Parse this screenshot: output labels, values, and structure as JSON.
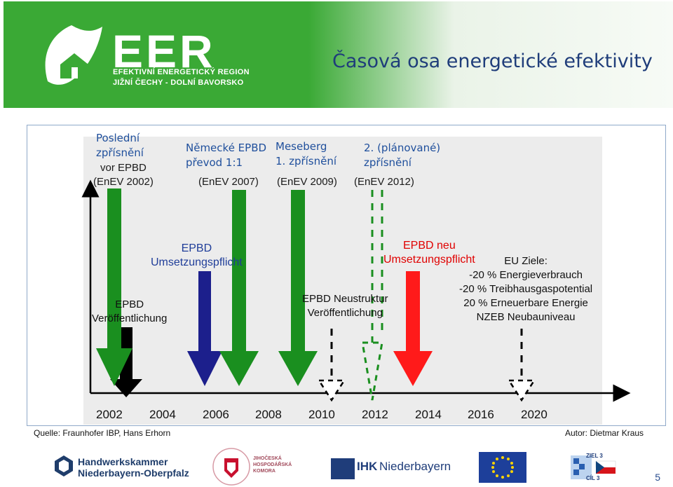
{
  "header": {
    "logo_text": "EER",
    "logo_sub1": "EFEKTIVNÍ ENERGETICKÝ REGION",
    "logo_sub2": "JIŽNÍ ČECHY - DOLNÍ BAVORSKO",
    "title": "Časová osa energetické efektivity"
  },
  "diagram": {
    "top_labels": {
      "l1_a": "Poslední",
      "l1_b": "zpřísnění",
      "l1_c": "vor EPBD",
      "l1_d": "(EnEV 2002)",
      "l2_a": "Německé EPBD",
      "l2_b": "převod 1:1",
      "l2_c": "(EnEV 2007)",
      "l3_a": "Meseberg",
      "l3_b": "1. zpřísnění",
      "l3_c": "(EnEV 2009)",
      "l4_a": "2. (plánované)",
      "l4_b": "zpřísnění",
      "l4_c": "(EnEV 2012)"
    },
    "mid_labels": {
      "epbd_umsetz_a": "EPBD",
      "epbd_umsetz_b": "Umsetzungspflicht",
      "epbd_neu_a": "EPBD neu",
      "epbd_neu_b": "Umsetzungspflicht",
      "epbd_veroff_a": "EPBD",
      "epbd_veroff_b": "Veröffentlichung",
      "neustruktur_a": "EPBD Neustruktur",
      "neustruktur_b": "Veröffentlichung",
      "eu_a": "EU Ziele:",
      "eu_b": "-20 % Energieverbrauch",
      "eu_c": "-20 % Treibhausgaspotential",
      "eu_d": "20 % Erneuerbare Energie",
      "eu_e": "NZEB Neubauniveau"
    },
    "years": [
      "2002",
      "2004",
      "2006",
      "2008",
      "2010",
      "2012",
      "2014",
      "2016",
      "2020"
    ],
    "colors": {
      "green": "#1a8f1f",
      "blue": "#1c1f8c",
      "red": "#ff1a1a",
      "black": "#000000"
    }
  },
  "footer": {
    "source": "Quelle: Fraunhofer IBP, Hans Erhorn",
    "author": "Autor: Dietmar Kraus",
    "hwk_1": "Handwerkskammer",
    "hwk_2": "Niederbayern-Oberpfalz",
    "jhk_1": "JIHOČESKÁ",
    "jhk_2": "HOSPODÁŘSKÁ",
    "jhk_3": "KOMORA",
    "ihk_a": "IHK",
    "ihk_b": "Niederbayern",
    "ziel_a": "ZIEL 3",
    "ziel_b": "CÍL 3",
    "page_number": "5"
  }
}
